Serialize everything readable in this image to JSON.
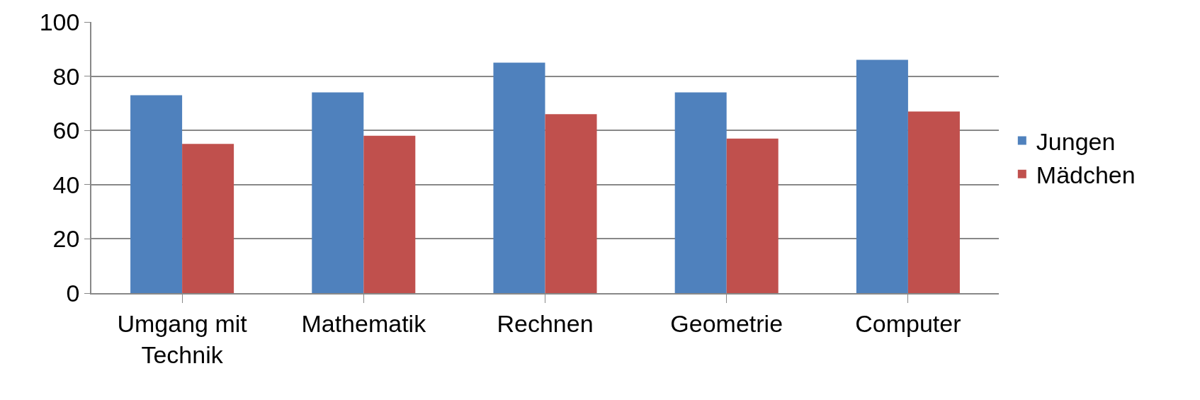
{
  "chart_data": {
    "type": "bar",
    "categories": [
      "Umgang mit Technik",
      "Mathematik",
      "Rechnen",
      "Geometrie",
      "Computer"
    ],
    "series": [
      {
        "name": "Jungen",
        "color": "#4f81bd",
        "values": [
          73,
          74,
          85,
          74,
          86
        ]
      },
      {
        "name": "Mädchen",
        "color": "#c0504d",
        "values": [
          55,
          58,
          66,
          57,
          67
        ]
      }
    ],
    "ylim": [
      0,
      100
    ],
    "yticks": [
      0,
      20,
      40,
      60,
      80,
      100
    ],
    "grid": "y",
    "legend": "right"
  }
}
